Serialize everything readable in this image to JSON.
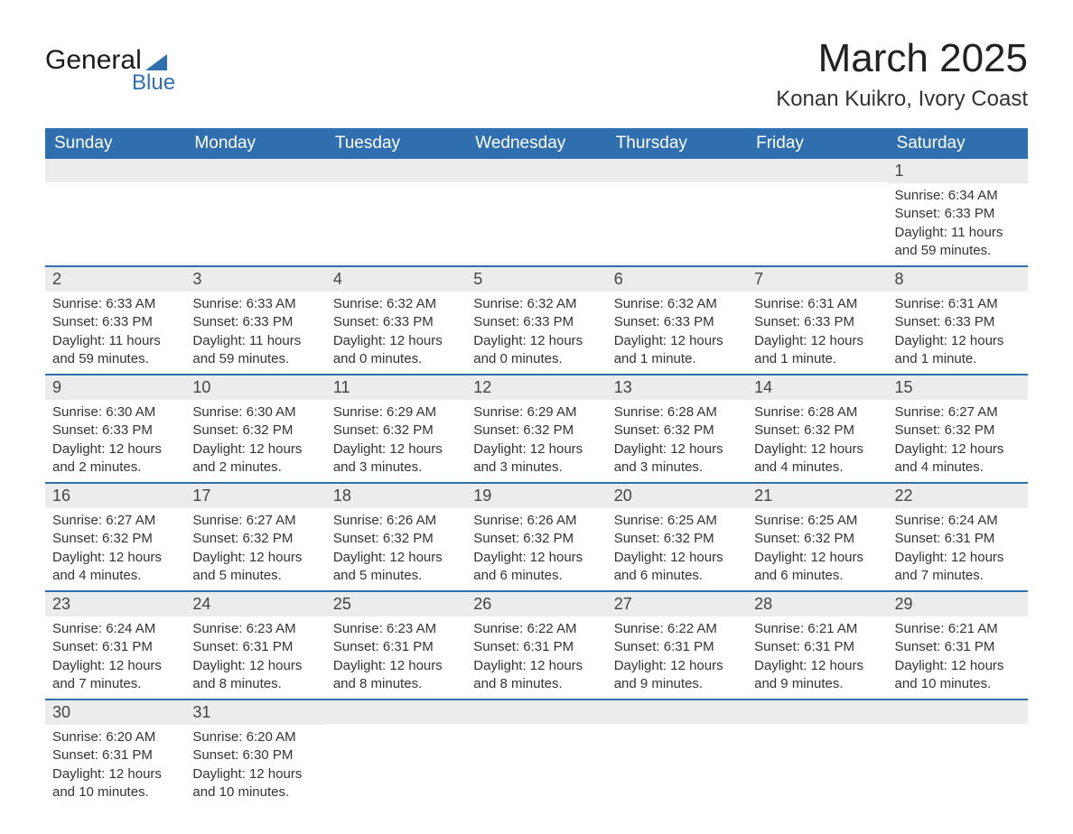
{
  "logo": {
    "line1": "General",
    "line2": "Blue"
  },
  "title": "March 2025",
  "location": "Konan Kuikro, Ivory Coast",
  "colors": {
    "header_bg": "#2f6fb0",
    "header_fg": "#ffffff",
    "daynum_bg": "#ececec",
    "row_divider": "#2f6fb0",
    "text": "#333333",
    "logo_accent": "#2f6fb0"
  },
  "weekdays": [
    "Sunday",
    "Monday",
    "Tuesday",
    "Wednesday",
    "Thursday",
    "Friday",
    "Saturday"
  ],
  "weeks": [
    [
      {
        "blank": true
      },
      {
        "blank": true
      },
      {
        "blank": true
      },
      {
        "blank": true
      },
      {
        "blank": true
      },
      {
        "blank": true
      },
      {
        "day": "1",
        "sunrise": "Sunrise: 6:34 AM",
        "sunset": "Sunset: 6:33 PM",
        "daylight": "Daylight: 11 hours and 59 minutes."
      }
    ],
    [
      {
        "day": "2",
        "sunrise": "Sunrise: 6:33 AM",
        "sunset": "Sunset: 6:33 PM",
        "daylight": "Daylight: 11 hours and 59 minutes."
      },
      {
        "day": "3",
        "sunrise": "Sunrise: 6:33 AM",
        "sunset": "Sunset: 6:33 PM",
        "daylight": "Daylight: 11 hours and 59 minutes."
      },
      {
        "day": "4",
        "sunrise": "Sunrise: 6:32 AM",
        "sunset": "Sunset: 6:33 PM",
        "daylight": "Daylight: 12 hours and 0 minutes."
      },
      {
        "day": "5",
        "sunrise": "Sunrise: 6:32 AM",
        "sunset": "Sunset: 6:33 PM",
        "daylight": "Daylight: 12 hours and 0 minutes."
      },
      {
        "day": "6",
        "sunrise": "Sunrise: 6:32 AM",
        "sunset": "Sunset: 6:33 PM",
        "daylight": "Daylight: 12 hours and 1 minute."
      },
      {
        "day": "7",
        "sunrise": "Sunrise: 6:31 AM",
        "sunset": "Sunset: 6:33 PM",
        "daylight": "Daylight: 12 hours and 1 minute."
      },
      {
        "day": "8",
        "sunrise": "Sunrise: 6:31 AM",
        "sunset": "Sunset: 6:33 PM",
        "daylight": "Daylight: 12 hours and 1 minute."
      }
    ],
    [
      {
        "day": "9",
        "sunrise": "Sunrise: 6:30 AM",
        "sunset": "Sunset: 6:33 PM",
        "daylight": "Daylight: 12 hours and 2 minutes."
      },
      {
        "day": "10",
        "sunrise": "Sunrise: 6:30 AM",
        "sunset": "Sunset: 6:32 PM",
        "daylight": "Daylight: 12 hours and 2 minutes."
      },
      {
        "day": "11",
        "sunrise": "Sunrise: 6:29 AM",
        "sunset": "Sunset: 6:32 PM",
        "daylight": "Daylight: 12 hours and 3 minutes."
      },
      {
        "day": "12",
        "sunrise": "Sunrise: 6:29 AM",
        "sunset": "Sunset: 6:32 PM",
        "daylight": "Daylight: 12 hours and 3 minutes."
      },
      {
        "day": "13",
        "sunrise": "Sunrise: 6:28 AM",
        "sunset": "Sunset: 6:32 PM",
        "daylight": "Daylight: 12 hours and 3 minutes."
      },
      {
        "day": "14",
        "sunrise": "Sunrise: 6:28 AM",
        "sunset": "Sunset: 6:32 PM",
        "daylight": "Daylight: 12 hours and 4 minutes."
      },
      {
        "day": "15",
        "sunrise": "Sunrise: 6:27 AM",
        "sunset": "Sunset: 6:32 PM",
        "daylight": "Daylight: 12 hours and 4 minutes."
      }
    ],
    [
      {
        "day": "16",
        "sunrise": "Sunrise: 6:27 AM",
        "sunset": "Sunset: 6:32 PM",
        "daylight": "Daylight: 12 hours and 4 minutes."
      },
      {
        "day": "17",
        "sunrise": "Sunrise: 6:27 AM",
        "sunset": "Sunset: 6:32 PM",
        "daylight": "Daylight: 12 hours and 5 minutes."
      },
      {
        "day": "18",
        "sunrise": "Sunrise: 6:26 AM",
        "sunset": "Sunset: 6:32 PM",
        "daylight": "Daylight: 12 hours and 5 minutes."
      },
      {
        "day": "19",
        "sunrise": "Sunrise: 6:26 AM",
        "sunset": "Sunset: 6:32 PM",
        "daylight": "Daylight: 12 hours and 6 minutes."
      },
      {
        "day": "20",
        "sunrise": "Sunrise: 6:25 AM",
        "sunset": "Sunset: 6:32 PM",
        "daylight": "Daylight: 12 hours and 6 minutes."
      },
      {
        "day": "21",
        "sunrise": "Sunrise: 6:25 AM",
        "sunset": "Sunset: 6:32 PM",
        "daylight": "Daylight: 12 hours and 6 minutes."
      },
      {
        "day": "22",
        "sunrise": "Sunrise: 6:24 AM",
        "sunset": "Sunset: 6:31 PM",
        "daylight": "Daylight: 12 hours and 7 minutes."
      }
    ],
    [
      {
        "day": "23",
        "sunrise": "Sunrise: 6:24 AM",
        "sunset": "Sunset: 6:31 PM",
        "daylight": "Daylight: 12 hours and 7 minutes."
      },
      {
        "day": "24",
        "sunrise": "Sunrise: 6:23 AM",
        "sunset": "Sunset: 6:31 PM",
        "daylight": "Daylight: 12 hours and 8 minutes."
      },
      {
        "day": "25",
        "sunrise": "Sunrise: 6:23 AM",
        "sunset": "Sunset: 6:31 PM",
        "daylight": "Daylight: 12 hours and 8 minutes."
      },
      {
        "day": "26",
        "sunrise": "Sunrise: 6:22 AM",
        "sunset": "Sunset: 6:31 PM",
        "daylight": "Daylight: 12 hours and 8 minutes."
      },
      {
        "day": "27",
        "sunrise": "Sunrise: 6:22 AM",
        "sunset": "Sunset: 6:31 PM",
        "daylight": "Daylight: 12 hours and 9 minutes."
      },
      {
        "day": "28",
        "sunrise": "Sunrise: 6:21 AM",
        "sunset": "Sunset: 6:31 PM",
        "daylight": "Daylight: 12 hours and 9 minutes."
      },
      {
        "day": "29",
        "sunrise": "Sunrise: 6:21 AM",
        "sunset": "Sunset: 6:31 PM",
        "daylight": "Daylight: 12 hours and 10 minutes."
      }
    ],
    [
      {
        "day": "30",
        "sunrise": "Sunrise: 6:20 AM",
        "sunset": "Sunset: 6:31 PM",
        "daylight": "Daylight: 12 hours and 10 minutes."
      },
      {
        "day": "31",
        "sunrise": "Sunrise: 6:20 AM",
        "sunset": "Sunset: 6:30 PM",
        "daylight": "Daylight: 12 hours and 10 minutes."
      },
      {
        "blank": true
      },
      {
        "blank": true
      },
      {
        "blank": true
      },
      {
        "blank": true
      },
      {
        "blank": true
      }
    ]
  ]
}
